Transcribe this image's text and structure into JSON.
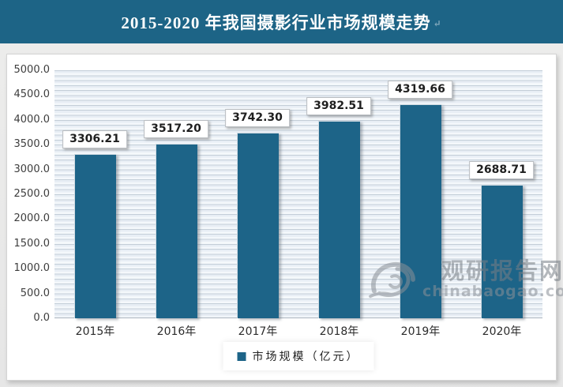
{
  "header": {
    "title": "2015-2020 年我国摄影行业市场规模走势",
    "title_mark": "↵",
    "background_color": "#1d6486"
  },
  "chart_data": {
    "type": "bar",
    "title": "2015-2020 年我国摄影行业市场规模走势",
    "categories": [
      "2015年",
      "2016年",
      "2017年",
      "2018年",
      "2019年",
      "2020年"
    ],
    "values": [
      3306.21,
      3517.2,
      3742.3,
      3982.51,
      4319.66,
      2688.71
    ],
    "value_labels": [
      "3306.21",
      "3517.20",
      "3742.30",
      "3982.51",
      "4319.66",
      "2688.71"
    ],
    "xlabel": "",
    "ylabel": "",
    "ylim": [
      0,
      5000
    ],
    "ytick_step": 500,
    "yticks": [
      "5000.0",
      "4500.0",
      "4000.0",
      "3500.0",
      "3000.0",
      "2500.0",
      "2000.0",
      "1500.0",
      "1000.0",
      "500.0",
      "0.0"
    ],
    "grid": "horizontal minor stripe lines, on",
    "bar_color": "#1d6488",
    "legend": {
      "position": "bottom",
      "marker_color": "#1d6488",
      "label": "市场规模（亿元）"
    }
  },
  "watermark": {
    "logo": "swirl-eye-logo",
    "name": "观研报告网",
    "domain": "chinabaogao.com"
  },
  "colors": {
    "accent": "#1d6488",
    "page_bg": "#e9e9e9",
    "panel_bg": "#ffffff",
    "stripe_line": "#c3ced8",
    "stripe_fill": "#e8eef5",
    "axis_line": "#a9b3bd"
  }
}
